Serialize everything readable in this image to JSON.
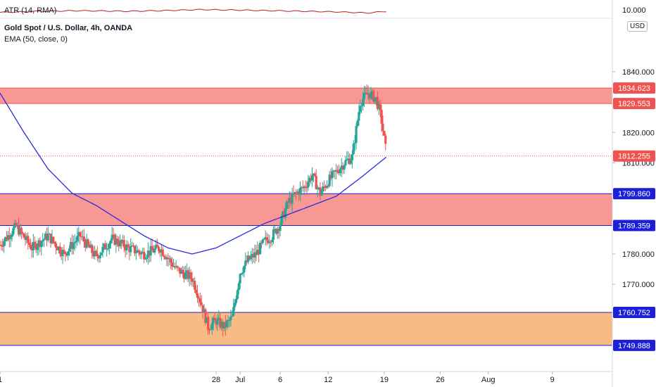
{
  "indicators": {
    "atr_label": "ATR (14, RMA)",
    "atr_value_tick": "10.000",
    "symbol_label": "Gold Spot / U.S. Dollar, 4h, OANDA",
    "ema_label": "EMA (50, close, 0)"
  },
  "currency_button": "USD",
  "colors": {
    "bull": "#26a69a",
    "bear": "#ef5350",
    "ema": "#2a2ae0",
    "zone_red": "#f7928f",
    "zone_orange": "#f8b77c",
    "zone_line": "#1b20d8",
    "atr_line": "#b22222",
    "last_price_line": "#ef5350",
    "axis_text": "#131722"
  },
  "chart_data": {
    "type": "candlestick",
    "title": "Gold Spot / U.S. Dollar, 4h, OANDA",
    "interval": "4h",
    "y_ticks": [
      "1840.000",
      "1820.000",
      "1810.000",
      "1780.000",
      "1770.000"
    ],
    "y_tick_values": [
      1840,
      1820,
      1810,
      1780,
      1770
    ],
    "ylim": [
      1741.3,
      1857.6
    ],
    "x_ticks": [
      "1",
      "28",
      "Jul",
      "6",
      "12",
      "19",
      "26",
      "Aug",
      "9"
    ],
    "x_tick_days": [
      0,
      27,
      30,
      35,
      41,
      48,
      55,
      61,
      69
    ],
    "xlim_days": [
      0,
      76.5
    ],
    "price_labels": [
      {
        "text": "1834.623",
        "value": 1834.623,
        "style": "red"
      },
      {
        "text": "1829.553",
        "value": 1829.553,
        "style": "red"
      },
      {
        "text": "1812.255",
        "value": 1812.255,
        "style": "red"
      },
      {
        "text": "1799.860",
        "value": 1799.86,
        "style": "blue"
      },
      {
        "text": "1789.359",
        "value": 1789.359,
        "style": "blue"
      },
      {
        "text": "1760.752",
        "value": 1760.752,
        "style": "blue"
      },
      {
        "text": "1749.888",
        "value": 1749.888,
        "style": "blue"
      }
    ],
    "zones": [
      {
        "name": "resistance-zone",
        "top": 1834.623,
        "bottom": 1829.553,
        "color": "red"
      },
      {
        "name": "support-zone",
        "top": 1799.86,
        "bottom": 1789.359,
        "color": "red"
      },
      {
        "name": "demand-zone",
        "top": 1760.752,
        "bottom": 1749.888,
        "color": "orange"
      }
    ],
    "last_price": 1812.255,
    "close_anchors_day_value": [
      [
        0,
        1783
      ],
      [
        2,
        1789
      ],
      [
        4,
        1782
      ],
      [
        6,
        1786
      ],
      [
        8,
        1780
      ],
      [
        10,
        1786
      ],
      [
        12,
        1779
      ],
      [
        14,
        1785
      ],
      [
        16,
        1782
      ],
      [
        18,
        1780
      ],
      [
        20,
        1782
      ],
      [
        22,
        1775
      ],
      [
        24,
        1772
      ],
      [
        25,
        1765
      ],
      [
        26,
        1756
      ],
      [
        27,
        1758
      ],
      [
        28,
        1756
      ],
      [
        29,
        1759
      ],
      [
        30,
        1774
      ],
      [
        31,
        1778
      ],
      [
        32,
        1780
      ],
      [
        33,
        1784
      ],
      [
        34,
        1786
      ],
      [
        35,
        1790
      ],
      [
        36,
        1797
      ],
      [
        37,
        1800
      ],
      [
        38,
        1802
      ],
      [
        39,
        1806
      ],
      [
        40,
        1800
      ],
      [
        41,
        1804
      ],
      [
        42,
        1807
      ],
      [
        43,
        1810
      ],
      [
        44,
        1812
      ],
      [
        45,
        1830
      ],
      [
        46,
        1833
      ],
      [
        47,
        1831
      ],
      [
        47.6,
        1825
      ],
      [
        48.3,
        1812.3
      ]
    ],
    "ema_anchors_day_value": [
      [
        0,
        1833
      ],
      [
        3,
        1820
      ],
      [
        6,
        1808
      ],
      [
        9,
        1800
      ],
      [
        12,
        1796
      ],
      [
        15,
        1791
      ],
      [
        18,
        1786
      ],
      [
        21,
        1782
      ],
      [
        24,
        1780
      ],
      [
        27,
        1782
      ],
      [
        30,
        1786
      ],
      [
        33,
        1790
      ],
      [
        36,
        1793
      ],
      [
        39,
        1796
      ],
      [
        42,
        1799
      ],
      [
        45,
        1805
      ],
      [
        48.3,
        1812
      ]
    ],
    "atr_anchors_day_value": [
      [
        0,
        6.3
      ],
      [
        5,
        6.5
      ],
      [
        10,
        6.6
      ],
      [
        16,
        6.5
      ],
      [
        20,
        6.6
      ],
      [
        25,
        6.8
      ],
      [
        30,
        6.7
      ],
      [
        34,
        6.6
      ],
      [
        38,
        6.5
      ],
      [
        42,
        6.4
      ],
      [
        46,
        6.2
      ],
      [
        48.3,
        6.5
      ]
    ]
  }
}
